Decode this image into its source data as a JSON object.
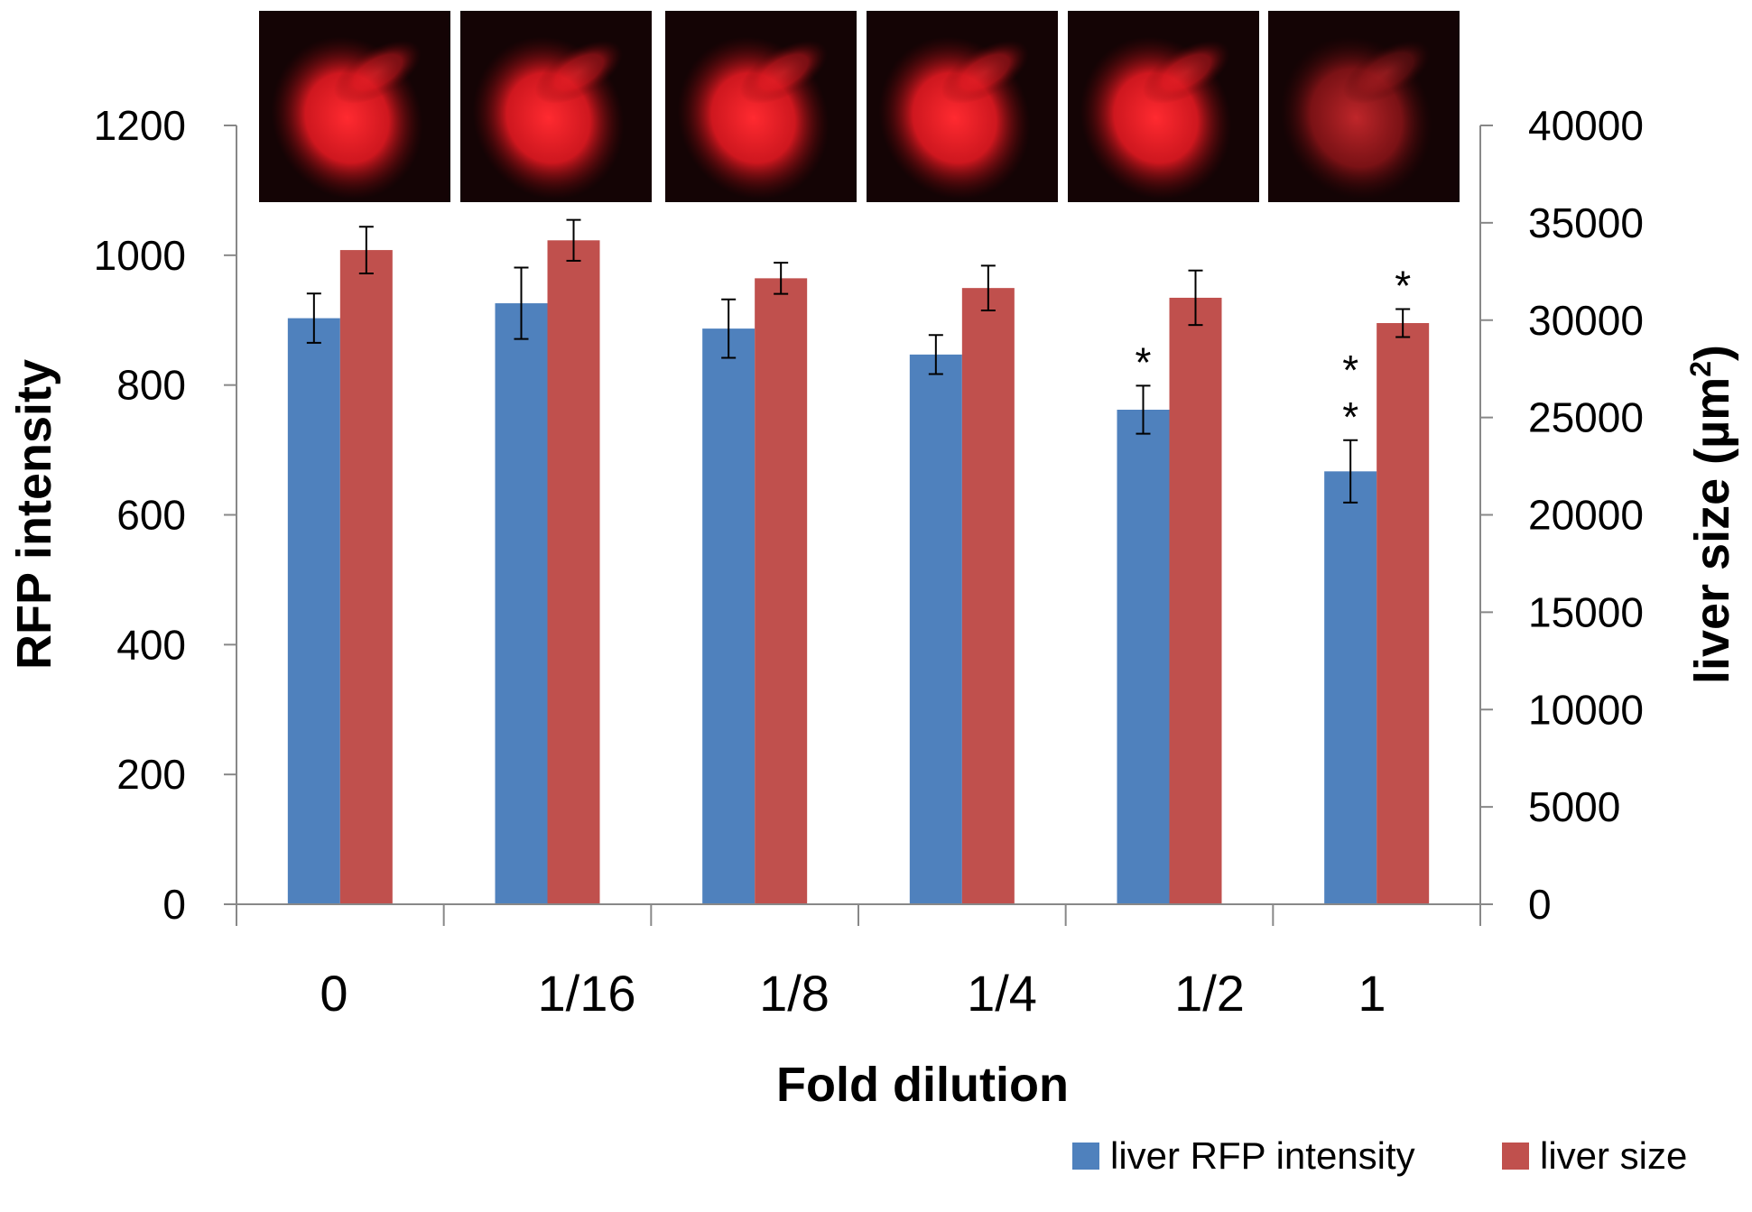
{
  "chart_data": {
    "type": "bar",
    "categories": [
      "0",
      "1/16",
      "1/8",
      "1/4",
      "1/2",
      "1"
    ],
    "xlabel": "Fold dilution",
    "ylabel": "RFP intensity",
    "y2label_main": "liver size (µm",
    "y2label_sup": "2",
    "y2label_close": ")",
    "ylim": [
      0,
      1200
    ],
    "y2lim": [
      0,
      40000
    ],
    "yticks": [
      0,
      200,
      400,
      600,
      800,
      1000,
      1200
    ],
    "y2ticks": [
      0,
      5000,
      10000,
      15000,
      20000,
      25000,
      30000,
      35000,
      40000
    ],
    "series": [
      {
        "name": "liver RFP intensity",
        "axis": "left",
        "color": "#4f81bd",
        "values": [
          903,
          926,
          887,
          847,
          762,
          667
        ],
        "errors": [
          38,
          55,
          45,
          30,
          37,
          48
        ]
      },
      {
        "name": "liver size",
        "axis": "right",
        "color": "#c0504d",
        "values": [
          33600,
          34100,
          32150,
          31650,
          31150,
          29850
        ],
        "errors": [
          1200,
          1050,
          800,
          1150,
          1400,
          720
        ]
      }
    ],
    "annotations": [
      {
        "category": "1/2",
        "series": "liver RFP intensity",
        "text": "*"
      },
      {
        "category": "1",
        "series": "liver RFP intensity",
        "text": "* *"
      },
      {
        "category": "1",
        "series": "liver size",
        "text": "*"
      }
    ],
    "legend_position": "bottom-right",
    "grid": false,
    "insets": [
      {
        "category": "0",
        "icon": "liver-fluorescence-image"
      },
      {
        "category": "1/16",
        "icon": "liver-fluorescence-image"
      },
      {
        "category": "1/8",
        "icon": "liver-fluorescence-image"
      },
      {
        "category": "1/4",
        "icon": "liver-fluorescence-image"
      },
      {
        "category": "1/2",
        "icon": "liver-fluorescence-image"
      },
      {
        "category": "1",
        "icon": "liver-fluorescence-image"
      }
    ]
  }
}
